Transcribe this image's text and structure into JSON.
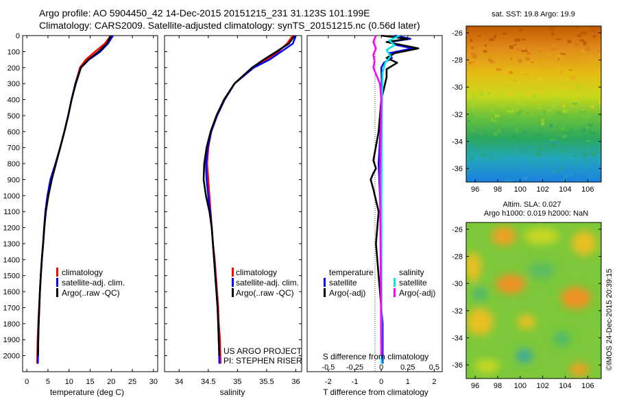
{
  "header": {
    "line1": "Argo profile: AO 5904450_42 14-Dec-2015 20151215_231 31.123S 101.199E",
    "line2": "Climatology: CARS2009. Satellite-adjusted climatology: synTS_20151215.nc (0.56d later)"
  },
  "panels": {
    "temperature": {
      "xlabel": "temperature (deg C)"
    },
    "salinity": {
      "xlabel": "salinity",
      "credit1": "US ARGO PROJECT",
      "credit2": "PI: STEPHEN RISER"
    },
    "difference": {
      "xlabel_bottom": "T difference from climatology",
      "xlabel_top": "S difference from climatology"
    }
  },
  "legend_main": {
    "items": [
      {
        "label": "climatology",
        "color": "#ff0000"
      },
      {
        "label": "satellite-adj. clim.",
        "color": "#0000ff"
      },
      {
        "label": "Argo(..raw -QC)",
        "color": "#000000"
      }
    ]
  },
  "legend_diff": {
    "col1_title": "temperature",
    "col2_title": "salinity",
    "col1": [
      {
        "label": "satellite",
        "color": "#0000ff"
      },
      {
        "label": "Argo(-adj)",
        "color": "#000000"
      }
    ],
    "col2": [
      {
        "label": "satellite",
        "color": "#00e5e5"
      },
      {
        "label": "Argo(-adj)",
        "color": "#ff00ff"
      }
    ]
  },
  "maps": {
    "sst_title": "sat. SST: 19.8 Argo: 19.9",
    "sla_title1": "Altim. SLA: 0.027",
    "sla_title2": "Argo h1000: 0.019 h2000: NaN",
    "xticks": [
      "96",
      "98",
      "100",
      "102",
      "104",
      "106"
    ],
    "yticks": [
      "-26",
      "-28",
      "-30",
      "-32",
      "-34",
      "-36"
    ]
  },
  "footer_stamp": "©IMOS 24-Dec-2015 20:39:15",
  "colors": {
    "climatology": "#ff0000",
    "satellite": "#0000ff",
    "argo": "#000000",
    "sat_salinity": "#00e5e5",
    "argo_salinity": "#ff00ff"
  },
  "chart_data": [
    {
      "type": "line",
      "name": "temperature",
      "xlabel": "temperature (deg C)",
      "ylabel": "",
      "xlim": [
        -1,
        31
      ],
      "ylim": [
        2100,
        0
      ],
      "xticks": [
        0,
        5,
        10,
        15,
        20,
        25,
        30
      ],
      "yticks": [
        0,
        100,
        200,
        300,
        400,
        500,
        600,
        700,
        800,
        900,
        1000,
        1100,
        1200,
        1300,
        1400,
        1500,
        1600,
        1700,
        1800,
        1900,
        2000
      ],
      "series": [
        {
          "name": "climatology",
          "color": "#ff0000",
          "x": [
            19.9,
            18.5,
            16.2,
            14.0,
            12.6,
            11.5,
            10.6,
            9.8,
            8.9,
            7.9,
            6.8,
            5.6,
            4.9,
            4.4,
            4.1,
            3.85,
            3.55,
            3.3,
            3.1,
            2.9,
            2.7,
            2.55,
            2.45
          ],
          "y": [
            0,
            50,
            100,
            150,
            200,
            300,
            400,
            500,
            600,
            700,
            800,
            900,
            1000,
            1100,
            1200,
            1300,
            1400,
            1500,
            1600,
            1700,
            1800,
            1900,
            2050
          ]
        },
        {
          "name": "satellite-adj. clim.",
          "color": "#0000ff",
          "x": [
            20.4,
            19.2,
            17.4,
            14.7,
            12.8,
            11.5,
            10.6,
            9.8,
            8.9,
            7.9,
            6.8,
            5.6,
            4.9,
            4.4,
            4.1,
            3.85,
            3.55,
            3.3,
            3.1,
            2.95,
            2.8,
            2.7,
            2.6
          ],
          "y": [
            0,
            50,
            100,
            150,
            200,
            300,
            400,
            500,
            600,
            700,
            800,
            900,
            1000,
            1100,
            1200,
            1300,
            1400,
            1500,
            1600,
            1700,
            1800,
            1900,
            2050
          ]
        },
        {
          "name": "Argo(..raw -QC)",
          "color": "#000000",
          "x": [
            19.9,
            19.0,
            17.0,
            14.6,
            12.8,
            11.6,
            10.6,
            9.8,
            8.9,
            7.9,
            6.9,
            5.9,
            5.1,
            4.5,
            4.15,
            3.85,
            3.55,
            3.3,
            3.1,
            2.95,
            2.8,
            2.7,
            2.65
          ],
          "y": [
            0,
            50,
            100,
            150,
            200,
            300,
            400,
            500,
            600,
            700,
            800,
            900,
            1000,
            1100,
            1200,
            1300,
            1400,
            1500,
            1600,
            1700,
            1800,
            1900,
            2000
          ]
        }
      ]
    },
    {
      "type": "line",
      "name": "salinity",
      "xlabel": "salinity",
      "ylabel": "",
      "xlim": [
        33.75,
        36.1
      ],
      "ylim": [
        2100,
        0
      ],
      "xticks": [
        34,
        34.5,
        35,
        35.5,
        36
      ],
      "series": [
        {
          "name": "climatology",
          "color": "#ff0000",
          "x": [
            35.95,
            35.85,
            35.7,
            35.5,
            35.25,
            34.95,
            34.78,
            34.65,
            34.55,
            34.5,
            34.48,
            34.5,
            34.52,
            34.54,
            34.56,
            34.58,
            34.61,
            34.63,
            34.65,
            34.67,
            34.68,
            34.7,
            34.71
          ],
          "y": [
            0,
            50,
            100,
            150,
            200,
            300,
            400,
            500,
            600,
            700,
            800,
            900,
            1000,
            1100,
            1200,
            1300,
            1400,
            1500,
            1600,
            1700,
            1800,
            1900,
            2050
          ]
        },
        {
          "name": "satellite-adj. clim.",
          "color": "#0000ff",
          "x": [
            36.0,
            35.95,
            35.75,
            35.55,
            35.28,
            34.95,
            34.78,
            34.65,
            34.55,
            34.49,
            34.46,
            34.47,
            34.5,
            34.53,
            34.56,
            34.58,
            34.6,
            34.62,
            34.64,
            34.66,
            34.67,
            34.68,
            34.69
          ],
          "y": [
            0,
            50,
            100,
            150,
            200,
            300,
            400,
            500,
            600,
            700,
            800,
            900,
            1000,
            1100,
            1200,
            1300,
            1400,
            1500,
            1600,
            1700,
            1800,
            1900,
            2050
          ]
        },
        {
          "name": "Argo(..raw -QC)",
          "color": "#000000",
          "x": [
            35.98,
            35.88,
            35.67,
            35.45,
            35.25,
            34.95,
            34.77,
            34.64,
            34.54,
            34.47,
            34.43,
            34.42,
            34.46,
            34.52,
            34.56,
            34.58,
            34.6,
            34.62,
            34.64,
            34.66,
            34.67,
            34.68,
            34.69
          ],
          "y": [
            0,
            50,
            100,
            150,
            200,
            300,
            400,
            500,
            600,
            700,
            800,
            900,
            1000,
            1100,
            1200,
            1300,
            1400,
            1500,
            1600,
            1700,
            1800,
            1900,
            2000
          ]
        }
      ]
    },
    {
      "type": "line",
      "name": "difference",
      "xlabel": "T difference from climatology",
      "ylabel": "",
      "xlim": [
        -2.8,
        2.3
      ],
      "ylim": [
        2100,
        0
      ],
      "xticks": [
        -2,
        -1,
        0,
        1,
        2
      ],
      "xticks_top": [
        -0.5,
        -0.25,
        0,
        0.25,
        0.5
      ],
      "xlim_top": [
        -0.7,
        0.575
      ],
      "series": [
        {
          "name": "temperature satellite",
          "color": "#0000ff",
          "x": [
            0.5,
            1.1,
            0.3,
            0.6,
            1.2,
            0.3,
            0.4,
            0.1,
            0.0,
            0.02,
            0.0,
            -0.1,
            -0.05,
            0.0,
            0.0,
            0.0,
            0.0,
            0.05,
            0.05,
            0.05,
            0.05
          ],
          "y": [
            0,
            20,
            40,
            60,
            80,
            110,
            140,
            170,
            200,
            300,
            500,
            800,
            1000,
            1200,
            1400,
            1600,
            1700,
            1800,
            1900,
            2000,
            2050
          ]
        },
        {
          "name": "temperature Argo(-adj)",
          "color": "#000000",
          "x": [
            0.0,
            1.0,
            0.2,
            0.8,
            1.4,
            0.5,
            0.2,
            0.6,
            0.2,
            0.2,
            0.0,
            -0.1,
            -0.3,
            -0.2,
            -0.3,
            -0.4,
            -0.3,
            -0.1,
            -0.2,
            -0.1,
            0.0,
            0.0,
            0.0
          ],
          "y": [
            0,
            20,
            40,
            60,
            80,
            110,
            140,
            170,
            210,
            260,
            400,
            600,
            780,
            830,
            860,
            900,
            960,
            1100,
            1300,
            1500,
            1700,
            1900,
            2000
          ]
        },
        {
          "name": "salinity satellite",
          "color": "#00e5e5",
          "x": [
            0.7,
            0.3,
            0.5,
            0.2,
            0.35,
            0.15,
            0.05,
            0.03,
            0.02,
            0.01,
            0.01,
            0.01,
            0.01
          ],
          "y": [
            0,
            30,
            60,
            90,
            130,
            170,
            230,
            400,
            700,
            1000,
            1400,
            1800,
            2050
          ]
        },
        {
          "name": "salinity Argo(-adj)",
          "color": "#ff00ff",
          "x": [
            -0.2,
            -0.3,
            -0.2,
            -0.3,
            -0.25,
            -0.3,
            -0.2,
            -0.05,
            0.0,
            -0.02,
            -0.05,
            -0.04,
            -0.03,
            -0.02,
            -0.01,
            0.0
          ],
          "y": [
            0,
            40,
            80,
            120,
            160,
            200,
            240,
            300,
            400,
            600,
            900,
            1100,
            1300,
            1500,
            1800,
            2000
          ]
        }
      ]
    },
    {
      "type": "heatmap",
      "name": "SST map",
      "title": "sat. SST: 19.8 Argo: 19.9",
      "xlim": [
        95.2,
        107.2
      ],
      "ylim": [
        -37,
        -25.5
      ],
      "xticks": [
        96,
        98,
        100,
        102,
        104,
        106
      ],
      "yticks": [
        -26,
        -28,
        -30,
        -32,
        -34,
        -36
      ]
    },
    {
      "type": "heatmap",
      "name": "SLA map",
      "title": "Altim. SLA: 0.027",
      "xlim": [
        95.2,
        107.2
      ],
      "ylim": [
        -37,
        -25.5
      ],
      "xticks": [
        96,
        98,
        100,
        102,
        104,
        106
      ],
      "yticks": [
        -26,
        -28,
        -30,
        -32,
        -34,
        -36
      ]
    }
  ]
}
